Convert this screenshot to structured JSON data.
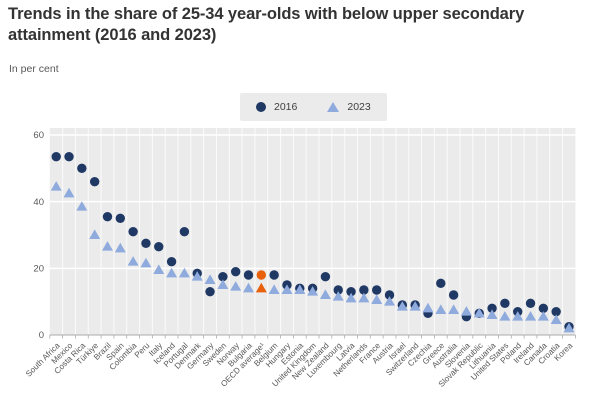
{
  "page": {
    "title": "Trends in the share of 25-34 year-olds with below upper secondary attainment (2016 and 2023)",
    "subtitle": "In per cent"
  },
  "legend": {
    "items": [
      {
        "label": "2016",
        "marker": "circle",
        "color": "#1f3864"
      },
      {
        "label": "2023",
        "marker": "triangle",
        "color": "#8faadc"
      }
    ]
  },
  "chart_data": {
    "type": "scatter",
    "title": "Trends in the share of 25-34 year-olds with below upper secondary attainment (2016 and 2023)",
    "subtitle": "In per cent",
    "ylabel": "",
    "xlabel": "",
    "ylim": [
      0,
      60
    ],
    "yticks": [
      0,
      20,
      40,
      60
    ],
    "grid": true,
    "plot_bg": "#ebebeb",
    "legend_position": "top-center",
    "highlight": {
      "category": "OECD average¹",
      "color": "#e8600c"
    },
    "categories": [
      "South Africa",
      "Mexico",
      "Costa Rica",
      "Türkiye",
      "Brazil",
      "Spain",
      "Colombia",
      "Peru",
      "Italy",
      "Iceland",
      "Portugal",
      "Denmark",
      "Germany",
      "Sweden",
      "Norway",
      "Bulgaria",
      "OECD average¹",
      "Belgium",
      "Hungary",
      "Estonia",
      "United Kingdom",
      "New Zealand",
      "Luxembourg",
      "Latvia",
      "Netherlands",
      "France",
      "Austria",
      "Israel",
      "Switzerland",
      "Czechia",
      "Greece",
      "Australia",
      "Slovenia",
      "Slovak Republic",
      "Lithuania",
      "United States",
      "Poland",
      "Ireland",
      "Canada",
      "Croatia",
      "Korea"
    ],
    "series": [
      {
        "name": "2016",
        "marker": "circle",
        "color": "#1f3864",
        "values": [
          53.5,
          53.5,
          50,
          46,
          35.5,
          35,
          31,
          27.5,
          26.5,
          22,
          31,
          18.5,
          13,
          17.5,
          19,
          18,
          18,
          18,
          15,
          14,
          14,
          17.5,
          13.5,
          13,
          13.5,
          13.5,
          12,
          9,
          9,
          6.5,
          15.5,
          12,
          5.5,
          6.5,
          8,
          9.5,
          7,
          9.5,
          8,
          7,
          2.5
        ]
      },
      {
        "name": "2023",
        "marker": "triangle",
        "color": "#8faadc",
        "values": [
          44.5,
          42.5,
          38.5,
          30,
          26.5,
          26,
          22,
          21.5,
          19.5,
          18.5,
          18.5,
          17.5,
          16.5,
          15,
          14.5,
          14,
          14,
          13.5,
          13.5,
          13.5,
          13,
          12,
          11.5,
          11,
          11,
          10.5,
          10,
          8.5,
          8.5,
          8,
          7.5,
          7.5,
          7,
          6.5,
          6,
          5.5,
          5.5,
          5.5,
          5.5,
          4.5,
          2
        ]
      }
    ]
  }
}
